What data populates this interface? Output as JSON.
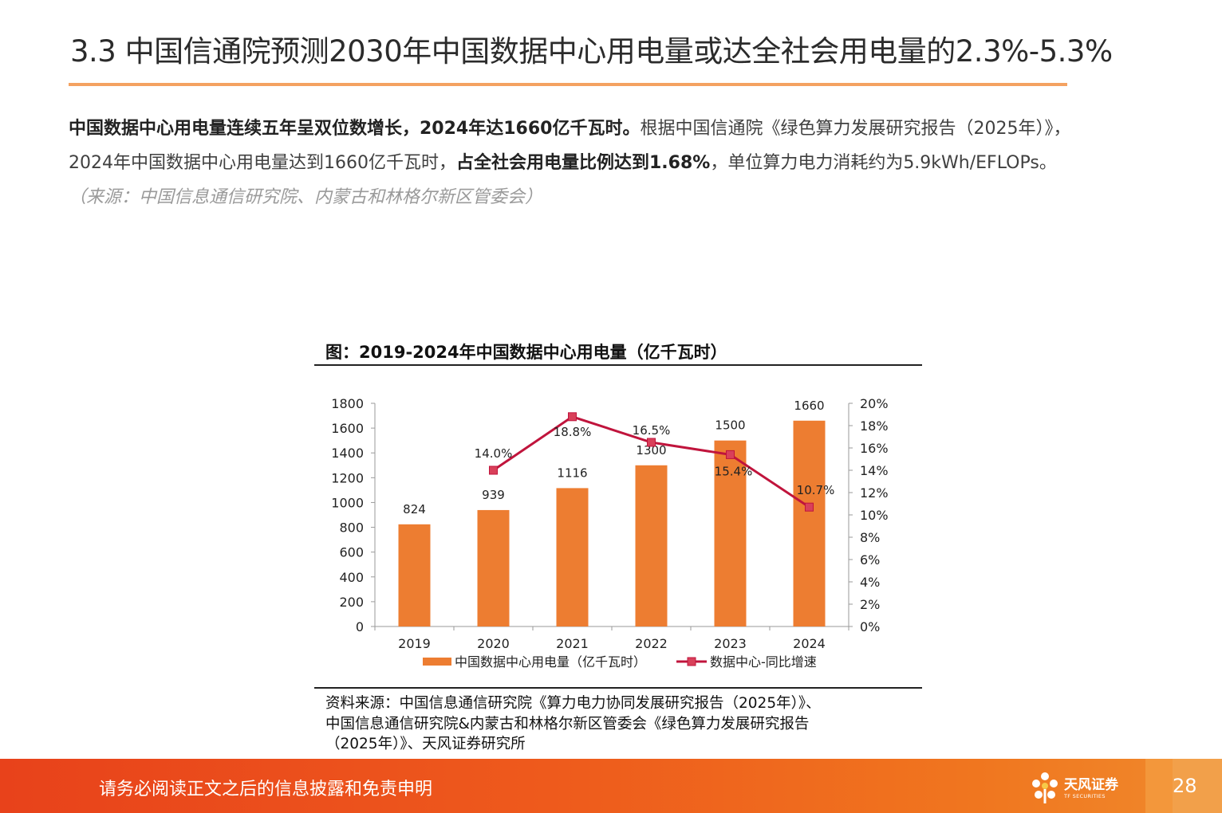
{
  "title": "3.3 中国信通院预测2030年中国数据中心用电量或达全社会用电量的2.3%-5.3%",
  "body": {
    "line1_bold": "中国数据中心用电量连续五年呈双位数增长，2024年达1660亿千瓦时。",
    "line1_normal": "根据中国信通院《绿色算力发展研究报告（2025年）》，",
    "line2_normal_a": "2024年中国数据中心用电量达到1660亿千瓦时，",
    "line2_bold": "占全社会用电量比例达到1.68%",
    "line2_normal_b": "，单位算力电力消耗约为5.9kWh/EFLOPs。",
    "line3_source": "（来源：中国信息通信研究院、内蒙古和林格尔新区管委会）"
  },
  "chart_title": "图：2019-2024年中国数据中心用电量（亿千瓦时）",
  "chart_data": {
    "type": "bar",
    "categories": [
      "2019",
      "2020",
      "2021",
      "2022",
      "2023",
      "2024"
    ],
    "series": [
      {
        "name": "中国数据中心用电量（亿千瓦时）",
        "type": "bar",
        "axis": "left",
        "values": [
          824,
          939,
          1116,
          1300,
          1500,
          1660
        ],
        "labels": [
          "824",
          "939",
          "1116",
          "1300",
          "1500",
          "1660"
        ]
      },
      {
        "name": "数据中心-同比增速",
        "type": "line",
        "axis": "right",
        "values": [
          null,
          14.0,
          18.8,
          16.5,
          15.4,
          10.7
        ],
        "labels": [
          "",
          "14.0%",
          "18.8%",
          "16.5%",
          "15.4%",
          "10.7%"
        ]
      }
    ],
    "y_left": {
      "min": 0,
      "max": 1800,
      "ticks": [
        "0",
        "200",
        "400",
        "600",
        "800",
        "1000",
        "1200",
        "1400",
        "1600",
        "1800"
      ]
    },
    "y_right": {
      "min": 0,
      "max": 20,
      "ticks": [
        "0%",
        "2%",
        "4%",
        "6%",
        "8%",
        "10%",
        "12%",
        "14%",
        "16%",
        "18%",
        "20%"
      ]
    },
    "grid": false,
    "legend_position": "bottom",
    "colors": {
      "bar": "#ed7d31",
      "line": "#c0143c",
      "marker_fill": "#d9405a"
    }
  },
  "chart_source": {
    "line1": "资料来源：中国信息通信研究院《算力电力协同发展研究报告（2025年）》、",
    "line2": "中国信息通信研究院&内蒙古和林格尔新区管委会《绿色算力发展研究报告",
    "line3": "（2025年）》、天风证券研究所"
  },
  "footer": {
    "disclaimer": "请务必阅读正文之后的信息披露和免责申明",
    "logo_cn": "天风证券",
    "logo_en": "TF SECURITIES",
    "page_number": "28"
  }
}
